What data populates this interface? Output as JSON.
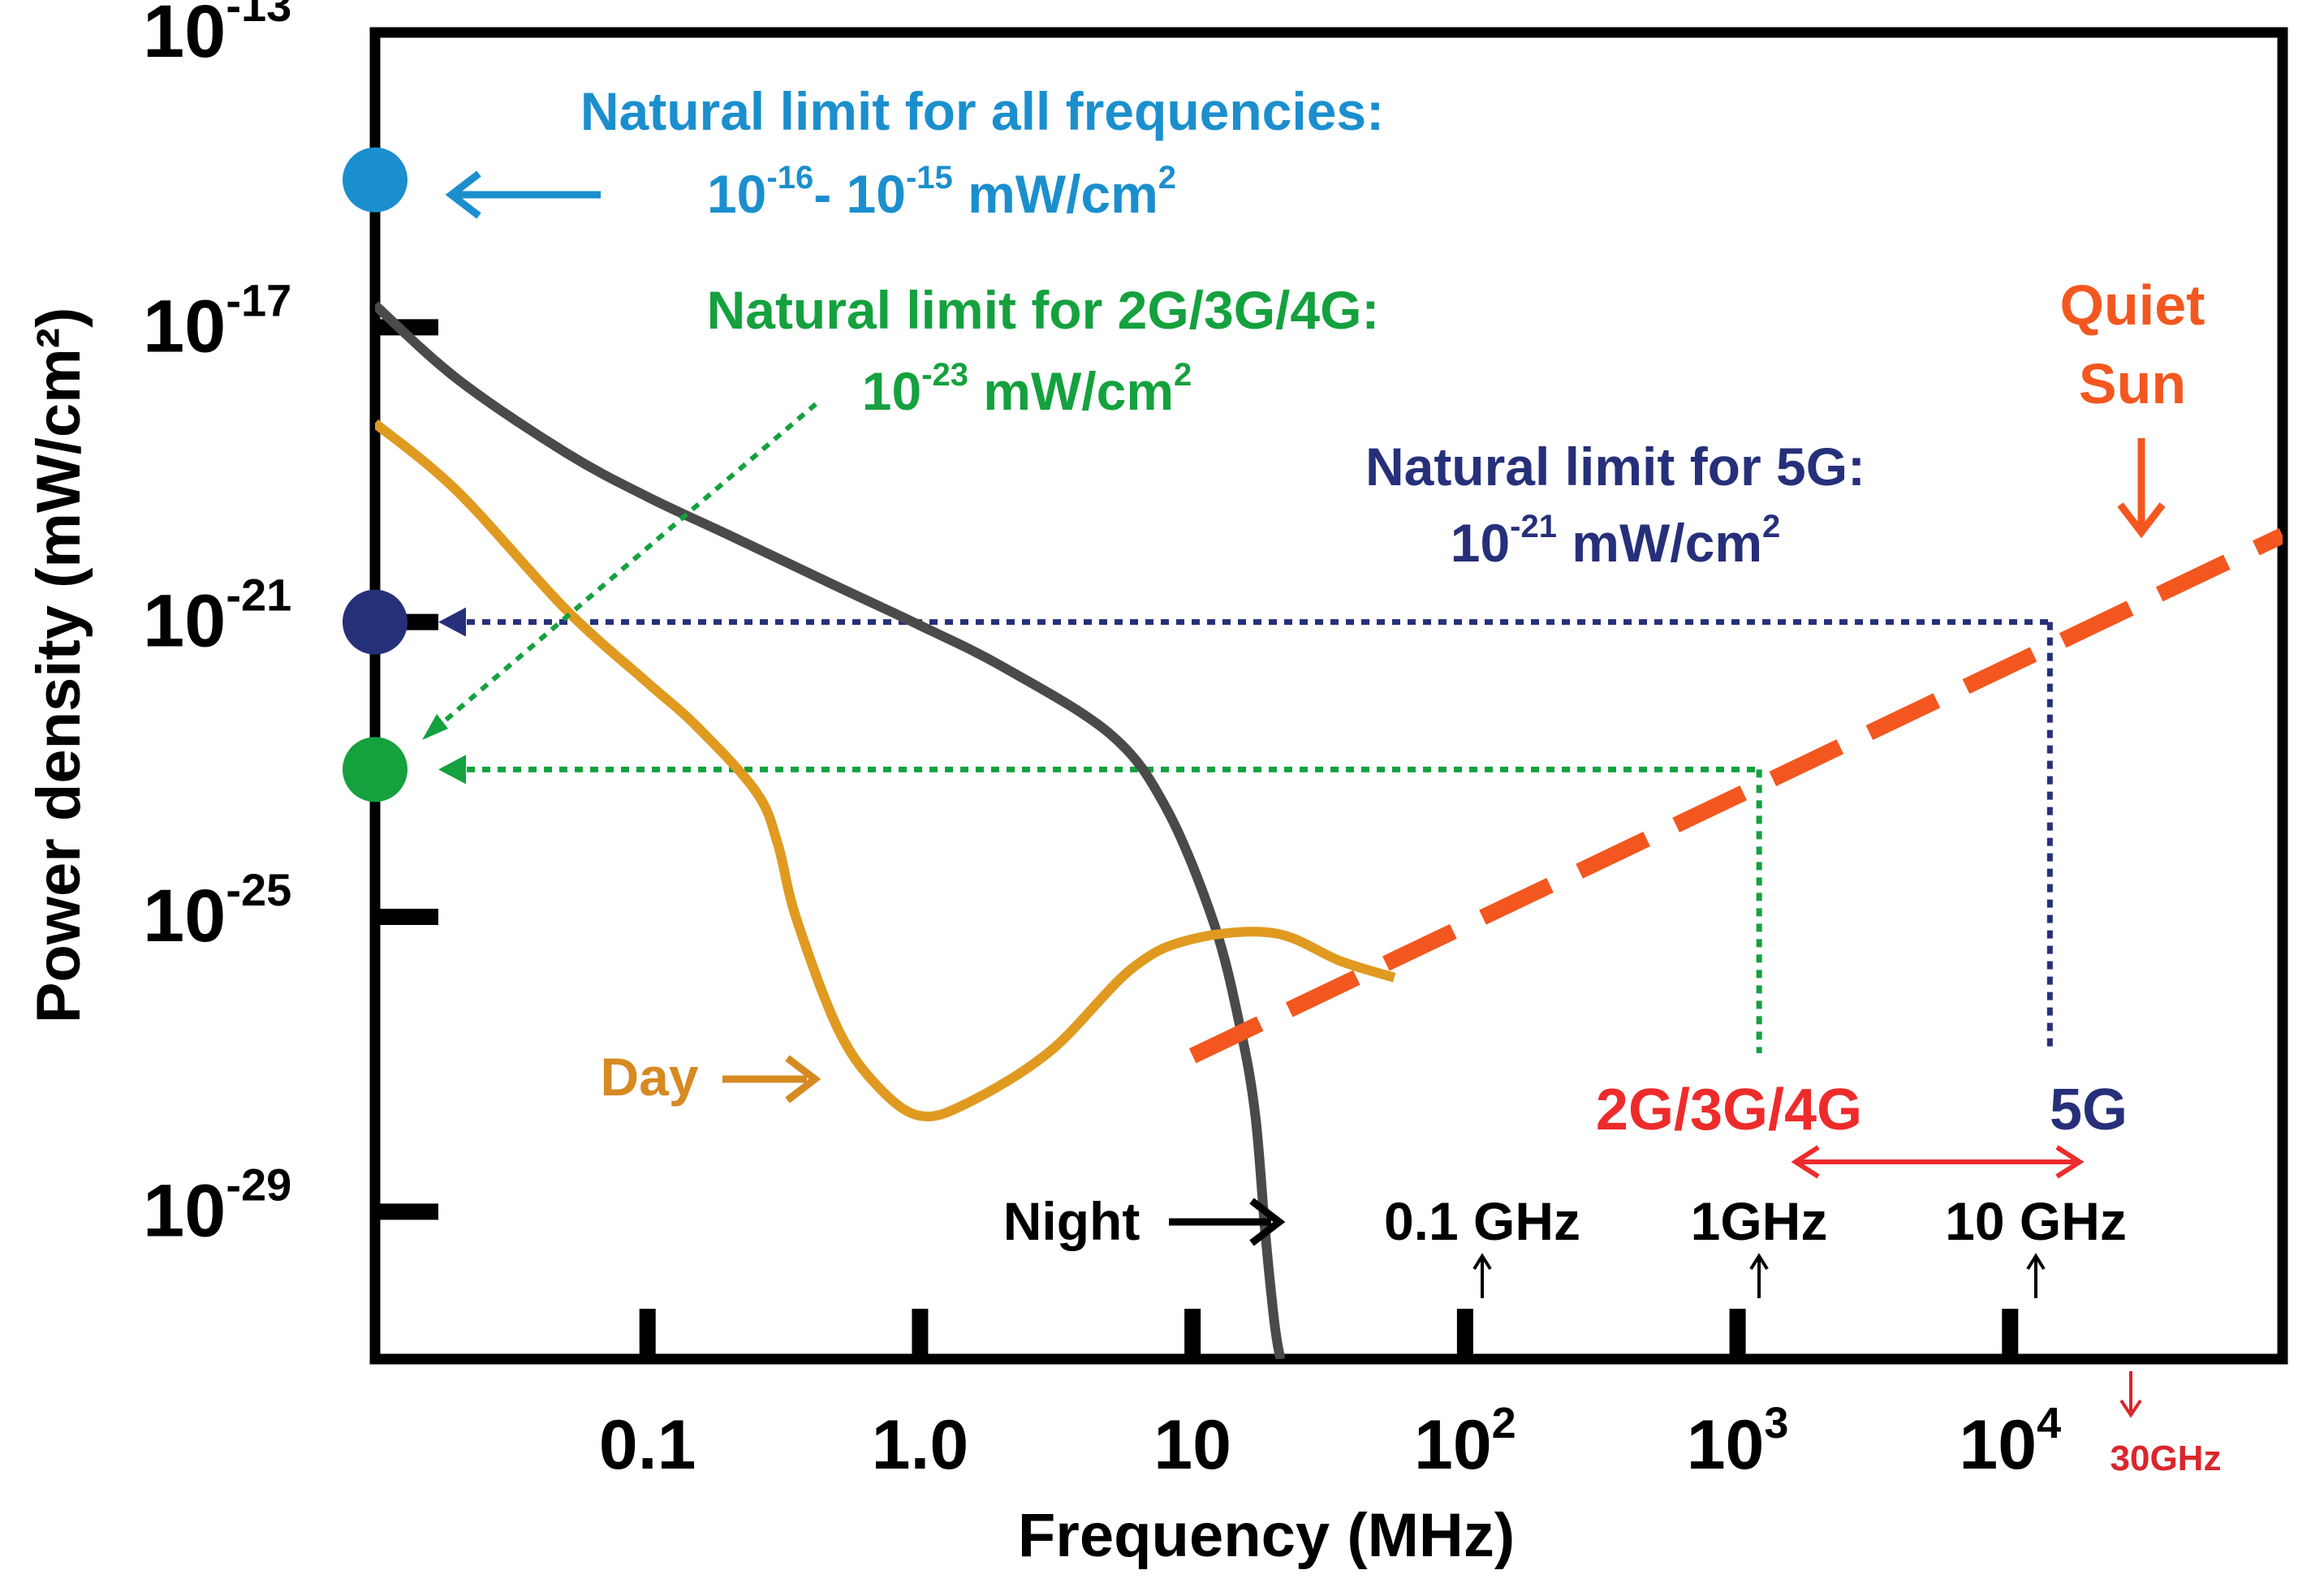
{
  "chart_data": {
    "type": "line",
    "xlabel": "Frequency (MHz)",
    "ylabel": "Power density (mW/cm²)",
    "x_scale": "log",
    "y_scale": "log",
    "xlim": [
      0.01,
      100000
    ],
    "ylim": [
      1e-31,
      1e-13
    ],
    "grid": false,
    "x_ticks": [
      {
        "value": 0.1,
        "label": "0.1"
      },
      {
        "value": 1,
        "label": "1.0"
      },
      {
        "value": 10,
        "label": "10"
      },
      {
        "value": 100,
        "base": "10",
        "exp": "2"
      },
      {
        "value": 1000,
        "base": "10",
        "exp": "3"
      },
      {
        "value": 10000,
        "base": "10",
        "exp": "4"
      }
    ],
    "y_ticks": [
      {
        "value": 1e-13,
        "base": "10",
        "exp": "-13"
      },
      {
        "value": 1e-17,
        "base": "10",
        "exp": "-17"
      },
      {
        "value": 1e-21,
        "base": "10",
        "exp": "-21"
      },
      {
        "value": 1e-25,
        "base": "10",
        "exp": "-25"
      },
      {
        "value": 1e-29,
        "base": "10",
        "exp": "-29"
      }
    ],
    "series": [
      {
        "name": "Night",
        "color": "#4a4a4a",
        "style": "solid",
        "x": [
          0.01,
          0.02,
          0.05,
          0.1,
          0.2,
          0.5,
          1,
          2,
          5,
          8,
          12,
          15,
          17,
          18.5,
          20,
          21
        ],
        "y": [
          2e-17,
          2e-18,
          2e-19,
          5e-20,
          1.5e-20,
          3e-21,
          9e-22,
          2.5e-22,
          3e-23,
          3e-24,
          8e-26,
          3e-27,
          2e-28,
          5e-30,
          3e-31,
          1e-31
        ]
      },
      {
        "name": "Day",
        "color": "#e09a20",
        "style": "solid",
        "x": [
          0.01,
          0.02,
          0.05,
          0.1,
          0.15,
          0.25,
          0.3,
          0.35,
          0.5,
          0.7,
          1,
          1.5,
          3,
          6,
          10,
          20,
          35,
          55
        ],
        "y": [
          5e-19,
          6e-20,
          1.5e-21,
          1.5e-22,
          4e-23,
          5e-24,
          1e-24,
          1e-25,
          3e-27,
          5e-28,
          2e-28,
          3e-28,
          1.5e-27,
          2e-26,
          5e-26,
          6e-26,
          2.5e-26,
          1.5e-26
        ]
      },
      {
        "name": "Quiet Sun",
        "color": "#f3571f",
        "style": "dashed",
        "x": [
          10,
          100000
        ],
        "y": [
          1.3e-27,
          1.5e-20
        ]
      }
    ],
    "markers": [
      {
        "name": "all-frequencies",
        "y": 1e-15,
        "color": "#1b8fce"
      },
      {
        "name": "5g",
        "y": 1e-21,
        "color": "#26307a"
      },
      {
        "name": "2g-3g-4g",
        "y": 1e-23,
        "color": "#14a13e"
      }
    ],
    "limit_lines": [
      {
        "name": "5g",
        "x": 14000,
        "y": 1e-21,
        "color": "#26307a"
      },
      {
        "name": "2g-3g-4g",
        "x": 1200,
        "y": 1e-23,
        "color": "#14a13e"
      }
    ]
  },
  "annotations": {
    "all_freq_line1": "Natural limit for all frequencies:",
    "all_freq_line2": {
      "a": "10",
      "aexp": "-16",
      "sep": "- ",
      "b": "10",
      "bexp": "-15",
      "unit": " mW/cm",
      "uexp": "2"
    },
    "g234_line1": "Natural limit for 2G/3G/4G:",
    "g234_line2": {
      "a": "10",
      "aexp": "-23",
      "unit": " mW/cm",
      "uexp": "2"
    },
    "g5_line1": "Natural limit for 5G:",
    "g5_line2": {
      "a": "10",
      "aexp": "-21",
      "unit": " mW/cm",
      "uexp": "2"
    },
    "quiet_sun_line1": "Quiet",
    "quiet_sun_line2": "Sun",
    "day_label": "Day",
    "night_label": "Night",
    "band_234": "2G/3G/4G",
    "band_5g": "5G",
    "ghz_01": "0.1 GHz",
    "ghz_1": "1GHz",
    "ghz_10": "10 GHz",
    "ghz_30": "30GHz"
  },
  "colors": {
    "all_freq": "#1b8fce",
    "g234": "#14a13e",
    "g5": "#26307a",
    "sun": "#f3571f",
    "day": "#d68a22",
    "night": "#111111",
    "band": "#ee2b2b",
    "ghz30": "#d9262c"
  }
}
